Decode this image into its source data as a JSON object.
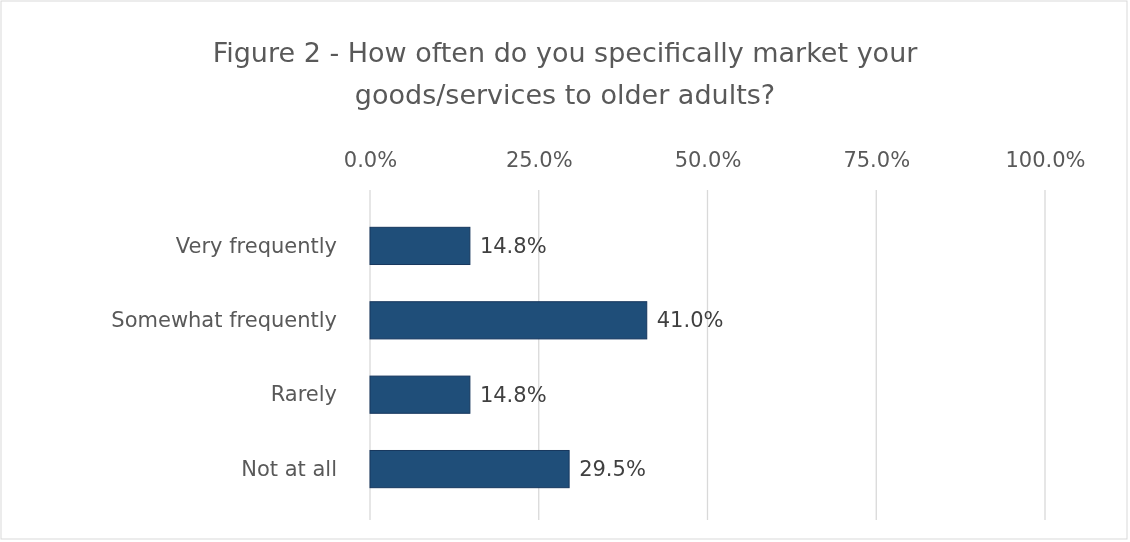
{
  "chart_data": {
    "type": "bar",
    "orientation": "horizontal",
    "title": "Figure 2 - How often do you specifically market your goods/services to older adults?",
    "categories": [
      "Very frequently",
      "Somewhat frequently",
      "Rarely",
      "Not at all"
    ],
    "values": [
      14.8,
      41.0,
      14.8,
      29.5
    ],
    "value_labels": [
      "14.8%",
      "41.0%",
      "14.8%",
      "29.5%"
    ],
    "color": "#1f4e79",
    "xlim": [
      0,
      100
    ],
    "xticks": [
      {
        "value": 0,
        "label": "0.0%"
      },
      {
        "value": 25,
        "label": "25.0%"
      },
      {
        "value": 50,
        "label": "50.0%"
      },
      {
        "value": 75,
        "label": "75.0%"
      },
      {
        "value": 100,
        "label": "100.0%"
      }
    ],
    "grid": "x"
  }
}
